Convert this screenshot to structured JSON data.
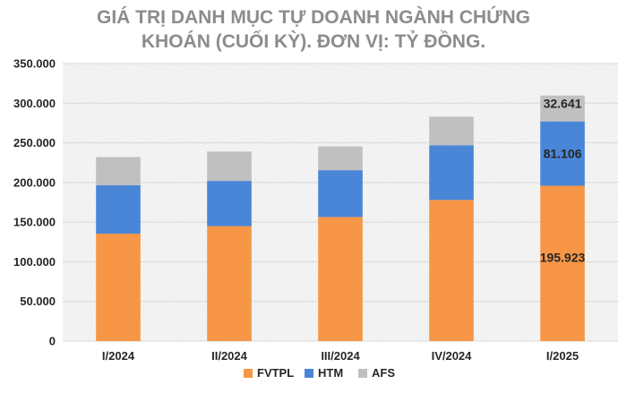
{
  "chart_data": {
    "type": "bar",
    "stacked": true,
    "title_lines": [
      "GIÁ TRỊ DANH MỤC TỰ DOANH NGÀNH CHỨNG",
      "KHOÁN (CUỐI KỲ). ĐƠN VỊ: TỶ ĐỒNG."
    ],
    "categories": [
      "I/2024",
      "II/2024",
      "III/2024",
      "IV/2024",
      "I/2025"
    ],
    "series": [
      {
        "name": "FVTPL",
        "color": "#f79646",
        "values": [
          135500,
          145000,
          156500,
          178000,
          195923
        ]
      },
      {
        "name": "HTM",
        "color": "#4a86d8",
        "values": [
          61000,
          57000,
          59000,
          69000,
          81106
        ]
      },
      {
        "name": "AFS",
        "color": "#c0c0c0",
        "values": [
          35500,
          37000,
          30000,
          36000,
          32641
        ]
      }
    ],
    "data_labels": [
      {
        "category": "I/2025",
        "series": "FVTPL",
        "text": "195.923"
      },
      {
        "category": "I/2025",
        "series": "HTM",
        "text": "81.106"
      },
      {
        "category": "I/2025",
        "series": "AFS",
        "text": "32.641"
      }
    ],
    "y_ticks": [
      {
        "value": 0,
        "label": "0"
      },
      {
        "value": 50000,
        "label": "50.000"
      },
      {
        "value": 100000,
        "label": "100.000"
      },
      {
        "value": 150000,
        "label": "150.000"
      },
      {
        "value": 200000,
        "label": "200.000"
      },
      {
        "value": 250000,
        "label": "250.000"
      },
      {
        "value": 300000,
        "label": "300.000"
      },
      {
        "value": 350000,
        "label": "350.000"
      }
    ],
    "ylim": [
      0,
      350000
    ],
    "grid": true,
    "plot_background": "hatched",
    "legend_position": "bottom"
  }
}
